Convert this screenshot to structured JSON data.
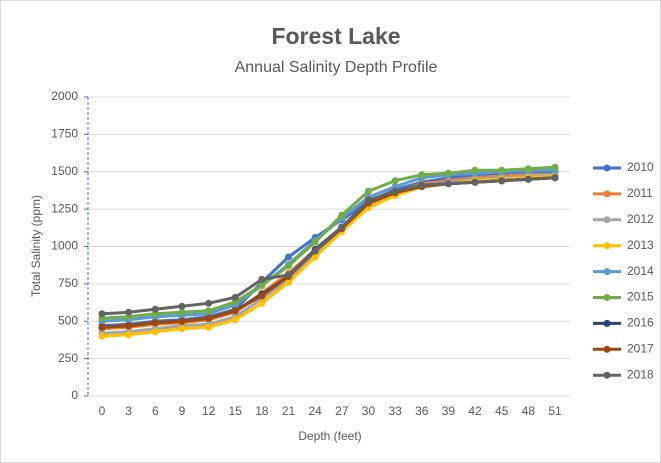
{
  "chart_data": {
    "type": "line",
    "title": "Forest Lake",
    "subtitle": "Annual Salinity Depth Profile",
    "x_label": "Depth (feet)",
    "y_label": "Total Salinity (ppm)",
    "categories": [
      "0",
      "3",
      "6",
      "9",
      "12",
      "15",
      "18",
      "21",
      "24",
      "27",
      "30",
      "33",
      "36",
      "39",
      "42",
      "45",
      "48",
      "51"
    ],
    "ylim": [
      0,
      2000
    ],
    "yticks": [
      0,
      250,
      500,
      750,
      1000,
      1250,
      1500,
      1750,
      2000
    ],
    "grid": true,
    "legend": "right",
    "series": [
      {
        "name": "2010",
        "color": "#4472c4",
        "values": [
          470,
          480,
          500,
          510,
          530,
          580,
          760,
          930,
          1060,
          1180,
          1300,
          1380,
          1430,
          1460,
          1480,
          1490,
          1500,
          1500
        ]
      },
      {
        "name": "2011",
        "color": "#ed7d31",
        "values": [
          450,
          460,
          480,
          490,
          510,
          560,
          690,
          820,
          980,
          1130,
          1280,
          1360,
          1420,
          1440,
          1460,
          1470,
          1480,
          1480
        ]
      },
      {
        "name": "2012",
        "color": "#a5a5a5",
        "values": [
          420,
          430,
          450,
          470,
          480,
          530,
          650,
          780,
          950,
          1120,
          1270,
          1350,
          1410,
          1430,
          1450,
          1460,
          1470,
          1480
        ]
      },
      {
        "name": "2013",
        "color": "#ffc000",
        "values": [
          400,
          410,
          430,
          450,
          460,
          510,
          620,
          760,
          930,
          1100,
          1260,
          1340,
          1400,
          1420,
          1440,
          1450,
          1460,
          1470
        ]
      },
      {
        "name": "2014",
        "color": "#5b9bd5",
        "values": [
          500,
          510,
          530,
          540,
          550,
          610,
          740,
          880,
          1040,
          1190,
          1330,
          1400,
          1460,
          1480,
          1490,
          1500,
          1510,
          1510
        ]
      },
      {
        "name": "2015",
        "color": "#70ad47",
        "values": [
          520,
          530,
          550,
          560,
          570,
          630,
          740,
          870,
          1030,
          1210,
          1370,
          1440,
          1480,
          1490,
          1510,
          1510,
          1520,
          1530
        ]
      },
      {
        "name": "2016",
        "color": "#264478",
        "values": [
          460,
          470,
          490,
          500,
          520,
          570,
          680,
          800,
          980,
          1130,
          1300,
          1360,
          1410,
          1420,
          1430,
          1440,
          1450,
          1460
        ]
      },
      {
        "name": "2017",
        "color": "#9e480e",
        "values": [
          460,
          470,
          490,
          500,
          520,
          570,
          670,
          800,
          970,
          1120,
          1290,
          1360,
          1400,
          1420,
          1430,
          1440,
          1450,
          1460
        ]
      },
      {
        "name": "2018",
        "color": "#636363",
        "values": [
          550,
          560,
          580,
          600,
          620,
          660,
          780,
          810,
          970,
          1130,
          1310,
          1370,
          1410,
          1420,
          1430,
          1440,
          1450,
          1460
        ]
      }
    ]
  }
}
